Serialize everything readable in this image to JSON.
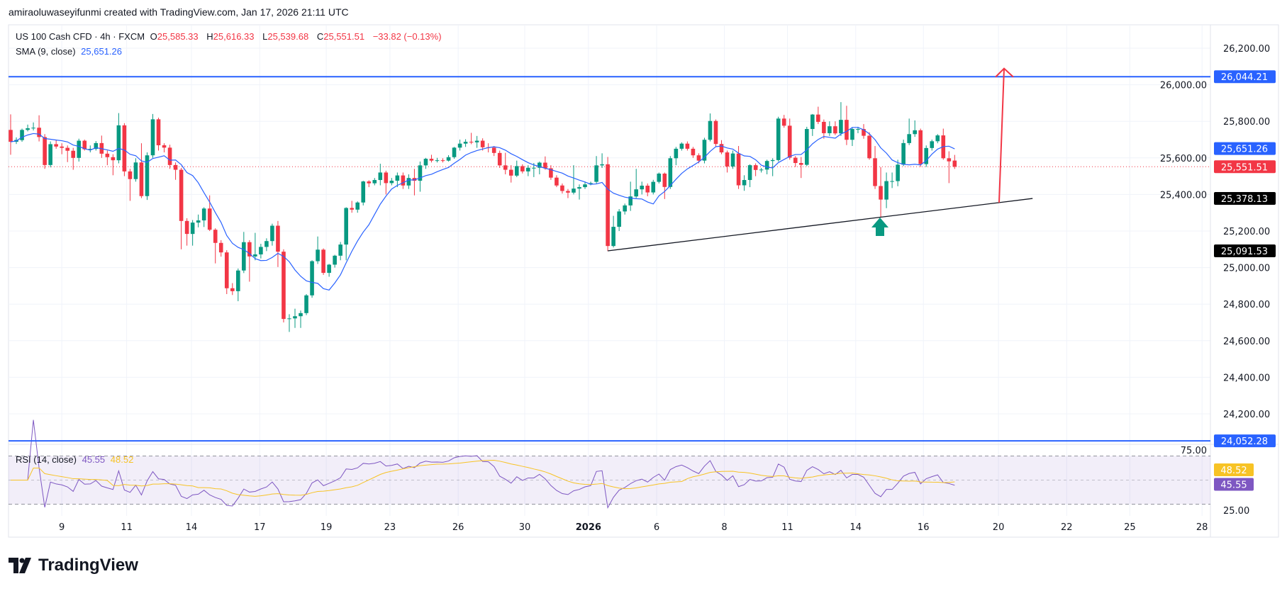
{
  "header": {
    "credit": "amiraoluwaseyifunmi created with TradingView.com, Jan 17, 2026 21:11 UTC"
  },
  "legend": {
    "symbol": "US 100 Cash CFD · 4h · FXCM",
    "o_label": "O",
    "o": "25,585.33",
    "h_label": "H",
    "h": "25,616.33",
    "l_label": "L",
    "l": "25,539.68",
    "c_label": "C",
    "c": "25,551.51",
    "change": "−33.82 (−0.13%)",
    "sma_label": "SMA (9, close)",
    "sma_value": "25,651.26"
  },
  "rsi_legend": {
    "label": "RSI (14, close)",
    "rsi": "45.55",
    "rsi_ma": "48.52"
  },
  "logo": {
    "text": "TradingView"
  },
  "colors": {
    "up": "#089981",
    "down": "#f23645",
    "sma": "#2962ff",
    "rsi": "#7e57c2",
    "rsi_ma": "#f7c325",
    "level": "#2962ff",
    "arrow_up": "#f23645",
    "support_arrow": "#089981"
  },
  "chart_data": {
    "type": "candlestick",
    "symbol": "US 100 Cash CFD",
    "interval": "4h",
    "ylim": [
      24050,
      26300
    ],
    "grid": true,
    "y_ticks": [
      "26,200.00",
      "26,000.00",
      "25,800.00",
      "25,600.00",
      "25,400.00",
      "25,200.00",
      "25,000.00",
      "24,800.00",
      "24,600.00",
      "24,400.00",
      "24,200.00"
    ],
    "x_ticks": [
      "9",
      "11",
      "14",
      "17",
      "19",
      "23",
      "26",
      "30",
      "2026",
      "6",
      "8",
      "11",
      "14",
      "16",
      "20",
      "22",
      "25",
      "28"
    ],
    "candles_ohlc": [
      [
        25753,
        25838,
        25617,
        25688
      ],
      [
        25688,
        25712,
        25676,
        25698
      ],
      [
        25697,
        25760,
        25688,
        25753
      ],
      [
        25753,
        25782,
        25745,
        25762
      ],
      [
        25762,
        25794,
        25750,
        25765
      ],
      [
        25765,
        25833,
        25690,
        25714
      ],
      [
        25714,
        25730,
        25540,
        25561
      ],
      [
        25561,
        25690,
        25548,
        25675
      ],
      [
        25675,
        25700,
        25650,
        25662
      ],
      [
        25662,
        25680,
        25620,
        25655
      ],
      [
        25655,
        25668,
        25577,
        25639
      ],
      [
        25639,
        25655,
        25535,
        25600
      ],
      [
        25600,
        25705,
        25580,
        25694
      ],
      [
        25694,
        25700,
        25640,
        25647
      ],
      [
        25647,
        25668,
        25630,
        25649
      ],
      [
        25649,
        25692,
        25640,
        25681
      ],
      [
        25681,
        25722,
        25600,
        25623
      ],
      [
        25623,
        25640,
        25560,
        25604
      ],
      [
        25604,
        25620,
        25505,
        25587
      ],
      [
        25587,
        25845,
        25570,
        25778
      ],
      [
        25778,
        25790,
        25500,
        25526
      ],
      [
        25526,
        25540,
        25365,
        25484
      ],
      [
        25484,
        25598,
        25470,
        25575
      ],
      [
        25575,
        25680,
        25380,
        25391
      ],
      [
        25391,
        25630,
        25370,
        25614
      ],
      [
        25614,
        25840,
        25600,
        25811
      ],
      [
        25811,
        25820,
        25640,
        25669
      ],
      [
        25669,
        25680,
        25630,
        25656
      ],
      [
        25656,
        25672,
        25540,
        25561
      ],
      [
        25561,
        25575,
        25480,
        25535
      ],
      [
        25535,
        25545,
        25100,
        25255
      ],
      [
        25255,
        25270,
        25120,
        25184
      ],
      [
        25184,
        25260,
        25120,
        25246
      ],
      [
        25246,
        25290,
        25220,
        25258
      ],
      [
        25258,
        25330,
        25222,
        25323
      ],
      [
        25323,
        25395,
        25200,
        25207
      ],
      [
        25207,
        25215,
        25023,
        25135
      ],
      [
        25135,
        25150,
        25060,
        25083
      ],
      [
        25083,
        25095,
        24855,
        24887
      ],
      [
        24887,
        24915,
        24850,
        24871
      ],
      [
        24871,
        24995,
        24816,
        24984
      ],
      [
        24984,
        25195,
        24970,
        25139
      ],
      [
        25139,
        25150,
        24923,
        25061
      ],
      [
        25061,
        25190,
        25040,
        25072
      ],
      [
        25072,
        25130,
        25050,
        25113
      ],
      [
        25113,
        25160,
        25090,
        25145
      ],
      [
        25145,
        25240,
        25120,
        25229
      ],
      [
        25229,
        25255,
        25003,
        25087
      ],
      [
        25087,
        25100,
        24700,
        24719
      ],
      [
        24719,
        24745,
        24648,
        24722
      ],
      [
        24722,
        24775,
        24670,
        24734
      ],
      [
        24734,
        24765,
        24670,
        24751
      ],
      [
        24751,
        24855,
        24740,
        24848
      ],
      [
        24848,
        25040,
        24835,
        25035
      ],
      [
        25035,
        25170,
        25020,
        25098
      ],
      [
        25098,
        25105,
        24960,
        24971
      ],
      [
        24971,
        25020,
        24950,
        25016
      ],
      [
        25016,
        25070,
        25000,
        25065
      ],
      [
        25065,
        25140,
        25040,
        25126
      ],
      [
        25126,
        25330,
        25040,
        25326
      ],
      [
        25326,
        25365,
        25300,
        25317
      ],
      [
        25317,
        25362,
        25300,
        25356
      ],
      [
        25356,
        25475,
        25340,
        25471
      ],
      [
        25471,
        25478,
        25440,
        25461
      ],
      [
        25461,
        25490,
        25450,
        25479
      ],
      [
        25479,
        25568,
        25450,
        25520
      ],
      [
        25520,
        25530,
        25400,
        25462
      ],
      [
        25462,
        25490,
        25450,
        25475
      ],
      [
        25475,
        25520,
        25440,
        25504
      ],
      [
        25504,
        25520,
        25430,
        25449
      ],
      [
        25449,
        25510,
        25430,
        25490
      ],
      [
        25490,
        25540,
        25395,
        25475
      ],
      [
        25475,
        25580,
        25415,
        25559
      ],
      [
        25559,
        25600,
        25540,
        25595
      ],
      [
        25595,
        25617,
        25575,
        25585
      ],
      [
        25585,
        25600,
        25575,
        25587
      ],
      [
        25587,
        25598,
        25575,
        25585
      ],
      [
        25585,
        25615,
        25580,
        25604
      ],
      [
        25604,
        25660,
        25595,
        25656
      ],
      [
        25656,
        25700,
        25640,
        25678
      ],
      [
        25678,
        25702,
        25660,
        25688
      ],
      [
        25688,
        25737,
        25675,
        25685
      ],
      [
        25685,
        25720,
        25655,
        25694
      ],
      [
        25694,
        25707,
        25640,
        25658
      ],
      [
        25658,
        25680,
        25630,
        25656
      ],
      [
        25656,
        25665,
        25610,
        25627
      ],
      [
        25627,
        25640,
        25545,
        25559
      ],
      [
        25559,
        25628,
        25510,
        25535
      ],
      [
        25535,
        25560,
        25465,
        25503
      ],
      [
        25503,
        25585,
        25495,
        25555
      ],
      [
        25555,
        25565,
        25515,
        25526
      ],
      [
        25526,
        25560,
        25500,
        25546
      ],
      [
        25546,
        25572,
        25495,
        25546
      ],
      [
        25546,
        25580,
        25510,
        25574
      ],
      [
        25574,
        25608,
        25535,
        25543
      ],
      [
        25543,
        25560,
        25480,
        25492
      ],
      [
        25492,
        25505,
        25440,
        25449
      ],
      [
        25449,
        25460,
        25405,
        25419
      ],
      [
        25419,
        25430,
        25380,
        25410
      ],
      [
        25410,
        25560,
        25400,
        25432
      ],
      [
        25432,
        25455,
        25372,
        25440
      ],
      [
        25440,
        25470,
        25430,
        25455
      ],
      [
        25455,
        25470,
        25450,
        25462
      ],
      [
        25469,
        25610,
        25460,
        25559
      ],
      [
        25559,
        25625,
        25545,
        25565
      ],
      [
        25565,
        25605,
        25090,
        25118
      ],
      [
        25118,
        25283,
        25110,
        25223
      ],
      [
        25223,
        25320,
        25200,
        25307
      ],
      [
        25307,
        25350,
        25290,
        25340
      ],
      [
        25340,
        25470,
        25310,
        25389
      ],
      [
        25389,
        25540,
        25380,
        25428
      ],
      [
        25428,
        25470,
        25400,
        25448
      ],
      [
        25448,
        25460,
        25390,
        25411
      ],
      [
        25411,
        25480,
        25400,
        25469
      ],
      [
        25469,
        25520,
        25460,
        25514
      ],
      [
        25514,
        25520,
        25375,
        25441
      ],
      [
        25441,
        25610,
        25430,
        25598
      ],
      [
        25598,
        25660,
        25560,
        25650
      ],
      [
        25650,
        25685,
        25640,
        25678
      ],
      [
        25678,
        25690,
        25640,
        25650
      ],
      [
        25650,
        25660,
        25600,
        25614
      ],
      [
        25614,
        25625,
        25570,
        25585
      ],
      [
        25585,
        25710,
        25570,
        25699
      ],
      [
        25699,
        25843,
        25690,
        25802
      ],
      [
        25802,
        25810,
        25660,
        25676
      ],
      [
        25676,
        25697,
        25620,
        25630
      ],
      [
        25630,
        25640,
        25520,
        25553
      ],
      [
        25553,
        25640,
        25540,
        25624
      ],
      [
        25624,
        25665,
        25430,
        25450
      ],
      [
        25450,
        25505,
        25420,
        25479
      ],
      [
        25479,
        25565,
        25440,
        25560
      ],
      [
        25560,
        25570,
        25500,
        25534
      ],
      [
        25534,
        25545,
        25520,
        25536
      ],
      [
        25536,
        25590,
        25510,
        25583
      ],
      [
        25583,
        25598,
        25500,
        25588
      ],
      [
        25588,
        25825,
        25580,
        25815
      ],
      [
        25815,
        25835,
        25765,
        25776
      ],
      [
        25776,
        25815,
        25590,
        25601
      ],
      [
        25601,
        25610,
        25550,
        25572
      ],
      [
        25572,
        25605,
        25490,
        25562
      ],
      [
        25562,
        25770,
        25555,
        25758
      ],
      [
        25758,
        25840,
        25720,
        25837
      ],
      [
        25837,
        25880,
        25785,
        25797
      ],
      [
        25797,
        25810,
        25705,
        25735
      ],
      [
        25735,
        25800,
        25720,
        25773
      ],
      [
        25773,
        25800,
        25725,
        25734
      ],
      [
        25734,
        25905,
        25720,
        25808
      ],
      [
        25808,
        25885,
        25670,
        25699
      ],
      [
        25699,
        25768,
        25665,
        25758
      ],
      [
        25758,
        25770,
        25735,
        25758
      ],
      [
        25758,
        25785,
        25705,
        25721
      ],
      [
        25721,
        25740,
        25590,
        25598
      ],
      [
        25598,
        25665,
        25430,
        25446
      ],
      [
        25446,
        25550,
        25275,
        25372
      ],
      [
        25372,
        25520,
        25325,
        25473
      ],
      [
        25473,
        25520,
        25435,
        25473
      ],
      [
        25473,
        25590,
        25445,
        25563
      ],
      [
        25563,
        25700,
        25555,
        25681
      ],
      [
        25681,
        25815,
        25670,
        25730
      ],
      [
        25730,
        25805,
        25715,
        25751
      ],
      [
        25751,
        25760,
        25550,
        25566
      ],
      [
        25566,
        25668,
        25550,
        25654
      ],
      [
        25654,
        25700,
        25640,
        25691
      ],
      [
        25691,
        25730,
        25680,
        25723
      ],
      [
        25723,
        25760,
        25590,
        25598
      ],
      [
        25598,
        25636,
        25462,
        25581
      ],
      [
        25585.33,
        25616.33,
        25539.68,
        25551.51
      ]
    ],
    "sma_period": 9,
    "horizontal_levels": [
      {
        "value": 26044.21,
        "label": "26,044.21"
      },
      {
        "value": 24052.28,
        "label": "24,052.28"
      }
    ],
    "last_price": {
      "value": 25551.51,
      "label": "25,551.51"
    },
    "sma_last": {
      "value": 25651.26,
      "label": "25,651.26"
    },
    "trendline": {
      "start": {
        "value": 25091.53,
        "label": "25,091.53"
      },
      "end": {
        "value": 25378.13,
        "label": "25,378.13"
      }
    },
    "target_arrow_value": 26089,
    "rsi": {
      "period": 14,
      "ma_period": 14,
      "ylim": [
        25,
        75
      ],
      "y_ticks": [
        "75.00",
        "25.00"
      ],
      "band": [
        30,
        70
      ],
      "last": 45.55,
      "ma_last": 48.52
    }
  }
}
